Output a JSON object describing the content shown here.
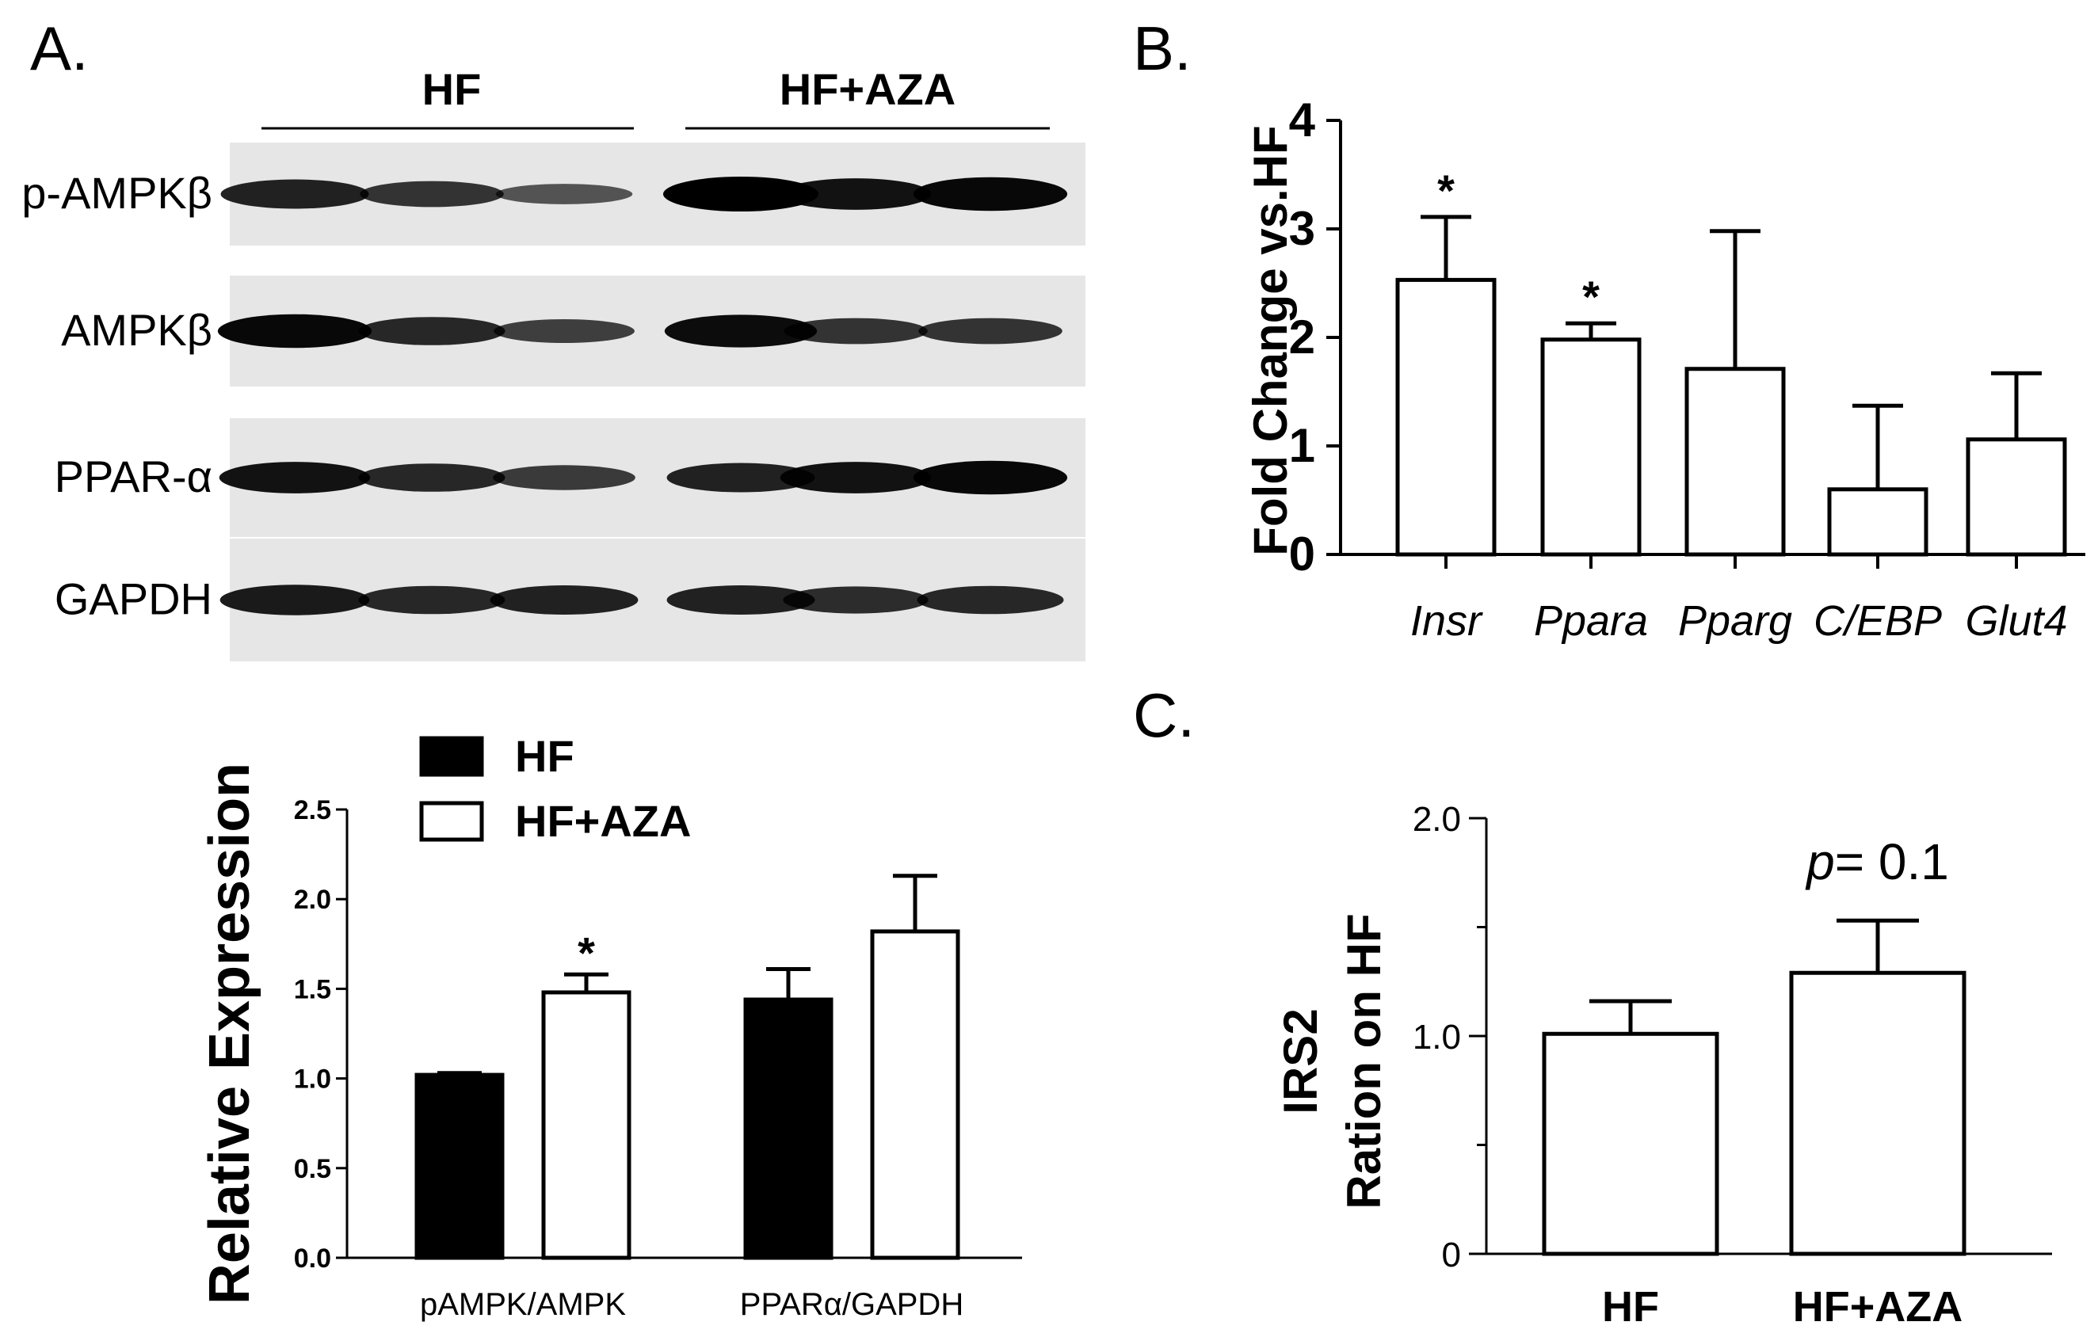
{
  "panels": {
    "a_letter": "A.",
    "b_letter": "B.",
    "c_letter": "C."
  },
  "blot": {
    "groups": [
      "HF",
      "HF+AZA"
    ],
    "rows": [
      {
        "label": "p-AMPKβ",
        "bands": [
          0.75,
          0.6,
          0.35,
          1.0,
          0.85,
          0.95
        ]
      },
      {
        "label": "AMPKβ",
        "bands": [
          0.95,
          0.7,
          0.5,
          0.9,
          0.6,
          0.6
        ]
      },
      {
        "label": "PPAR-α",
        "bands": [
          0.85,
          0.7,
          0.55,
          0.75,
          0.85,
          0.95
        ]
      },
      {
        "label": "GAPDH",
        "bands": [
          0.8,
          0.7,
          0.75,
          0.75,
          0.65,
          0.7
        ]
      }
    ]
  },
  "chart_data": [
    {
      "type": "bar",
      "panel": "A",
      "ylabel": "Relative Expression",
      "ylim": [
        0,
        2.5
      ],
      "yticks": [
        "0.0",
        "0.5",
        "1.0",
        "1.5",
        "2.0",
        "2.5"
      ],
      "categories": [
        "pAMPK/AMPK",
        "PPARα/GAPDH"
      ],
      "legend": "top-left",
      "series": [
        {
          "name": "HF",
          "color": "#000000",
          "values": [
            1.02,
            1.44
          ],
          "errors": [
            0.01,
            0.17
          ]
        },
        {
          "name": "HF+AZA",
          "color": "#ffffff",
          "values": [
            1.48,
            1.82
          ],
          "errors": [
            0.1,
            0.31
          ]
        }
      ],
      "annotations": [
        {
          "category": 0,
          "series": 1,
          "text": "*"
        }
      ]
    },
    {
      "type": "bar",
      "panel": "B",
      "ylabel": "Fold Change vs.HF",
      "ylim": [
        0,
        4
      ],
      "yticks": [
        "0",
        "1",
        "2",
        "3",
        "4"
      ],
      "categories": [
        "Insr",
        "Ppara",
        "Pparg",
        "C/EBP",
        "Glut4"
      ],
      "values": [
        2.53,
        1.98,
        1.71,
        0.6,
        1.06
      ],
      "errors": [
        0.58,
        0.15,
        1.27,
        0.77,
        0.61
      ],
      "annotations": [
        {
          "category": 0,
          "text": "*"
        },
        {
          "category": 1,
          "text": "*"
        }
      ]
    },
    {
      "type": "bar",
      "panel": "C",
      "ylabel_line1": "IRS2",
      "ylabel_line2": "Ration on HF",
      "ylim": [
        0,
        2
      ],
      "yticks": [
        {
          "v": 0,
          "t": "0"
        },
        {
          "v": 1,
          "t": "1.0"
        },
        {
          "v": 2,
          "t": "2.0"
        }
      ],
      "categories": [
        "HF",
        "HF+AZA"
      ],
      "values": [
        1.01,
        1.29
      ],
      "errors": [
        0.15,
        0.24
      ],
      "annotation": {
        "italic": "p",
        "rest": "= 0.1"
      }
    }
  ]
}
